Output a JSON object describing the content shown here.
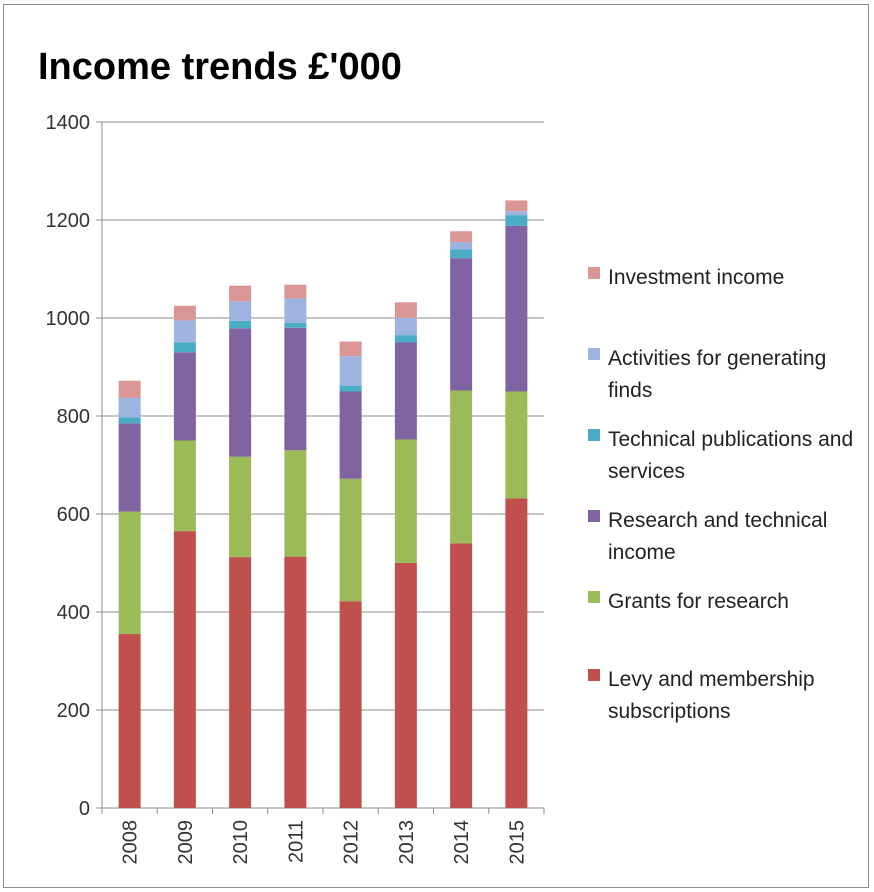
{
  "chart_data": {
    "type": "bar",
    "stacked": true,
    "title": "Income trends £'000",
    "xlabel": "",
    "ylabel": "",
    "ylim": [
      0,
      1400
    ],
    "yticks": [
      0,
      200,
      400,
      600,
      800,
      1000,
      1200,
      1400
    ],
    "grid": true,
    "legend_position": "right",
    "categories": [
      "2008",
      "2009",
      "2010",
      "2011",
      "2012",
      "2013",
      "2014",
      "2015"
    ],
    "series": [
      {
        "name": "Levy and membership subscriptions",
        "color": "#c0504d",
        "values": [
          355,
          565,
          512,
          513,
          422,
          500,
          540,
          632
        ]
      },
      {
        "name": "Grants for research",
        "color": "#9bbb59",
        "values": [
          250,
          185,
          205,
          217,
          250,
          252,
          312,
          218
        ]
      },
      {
        "name": "Research and technical income",
        "color": "#8064a2",
        "values": [
          180,
          180,
          262,
          250,
          178,
          198,
          270,
          338
        ]
      },
      {
        "name": "Technical publications and services",
        "color": "#4bacc6",
        "values": [
          12,
          20,
          15,
          10,
          12,
          15,
          18,
          22
        ]
      },
      {
        "name": "Activities for generating finds",
        "color": "#9db3e0",
        "values": [
          40,
          45,
          40,
          50,
          60,
          35,
          15,
          8
        ]
      },
      {
        "name": "Investment income",
        "color": "#d99694",
        "values": [
          35,
          30,
          32,
          28,
          30,
          32,
          22,
          22
        ]
      }
    ],
    "legend_order": [
      "Investment income",
      "Activities for generating finds",
      "Technical publications and services",
      "Research and technical income",
      "Grants for research",
      "Levy and membership subscriptions"
    ]
  }
}
